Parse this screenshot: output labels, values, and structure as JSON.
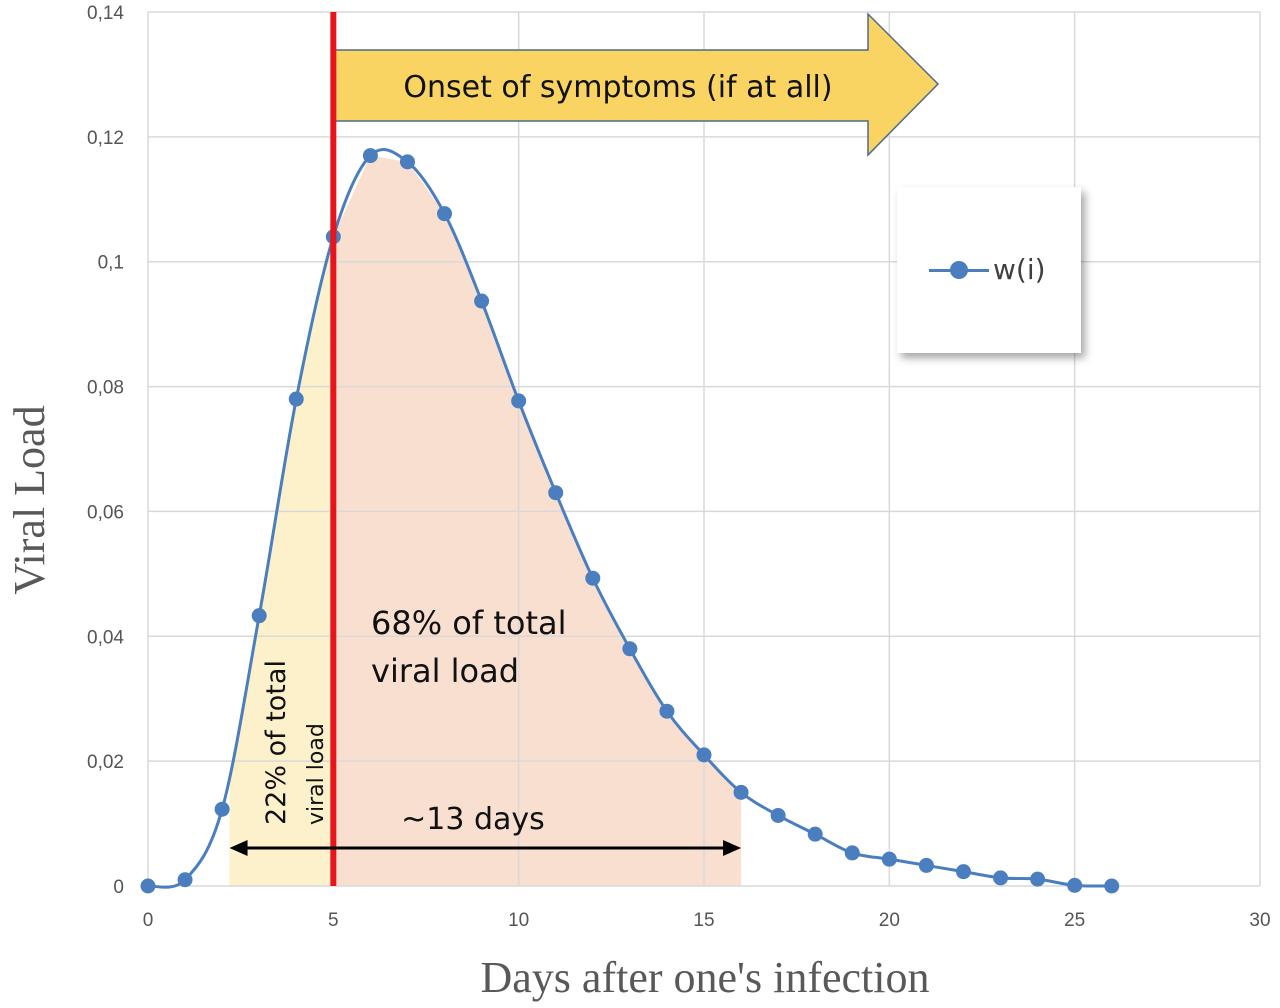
{
  "chart_data": {
    "type": "line",
    "xlabel": "Days after one's infection",
    "ylabel": "Viral Load",
    "xlim": [
      0,
      30
    ],
    "ylim": [
      0,
      0.14
    ],
    "x_ticks": [
      "0",
      "5",
      "10",
      "15",
      "20",
      "25",
      "30"
    ],
    "y_ticks": [
      "0",
      "0,02",
      "0,04",
      "0,06",
      "0,08",
      "0,1",
      "0,12",
      "0,14"
    ],
    "grid": true,
    "legend": "upper-right",
    "series": [
      {
        "name": "w(i)",
        "color": "#4a7ebf",
        "x": [
          0,
          1,
          2,
          3,
          4,
          5,
          6,
          7,
          8,
          9,
          10,
          11,
          12,
          13,
          14,
          15,
          16,
          17,
          18,
          19,
          20,
          21,
          22,
          23,
          24,
          25,
          26
        ],
        "y": [
          0,
          0.001,
          0.0123,
          0.0433,
          0.078,
          0.104,
          0.117,
          0.116,
          0.1077,
          0.0937,
          0.0777,
          0.063,
          0.0493,
          0.038,
          0.028,
          0.021,
          0.015,
          0.0113,
          0.0083,
          0.0053,
          0.0043,
          0.0033,
          0.0023,
          0.0013,
          0.0011,
          0.0001,
          0.0
        ]
      }
    ],
    "annotations": {
      "onset_day": 5,
      "onset_color": "#e8141b",
      "arrow_text": "Onset of symptoms (if at all)",
      "arrow_color": "#f9d462",
      "pre_region": [
        2.2,
        5
      ],
      "pre_color": "#fdf1cc",
      "pre_text_line1": "22% of total",
      "pre_text_line2": "viral load",
      "post_region": [
        5,
        16
      ],
      "post_color": "#f8dfd0",
      "post_text_line1": "68% of total",
      "post_text_line2": "viral load",
      "span_text": "~13 days"
    }
  }
}
